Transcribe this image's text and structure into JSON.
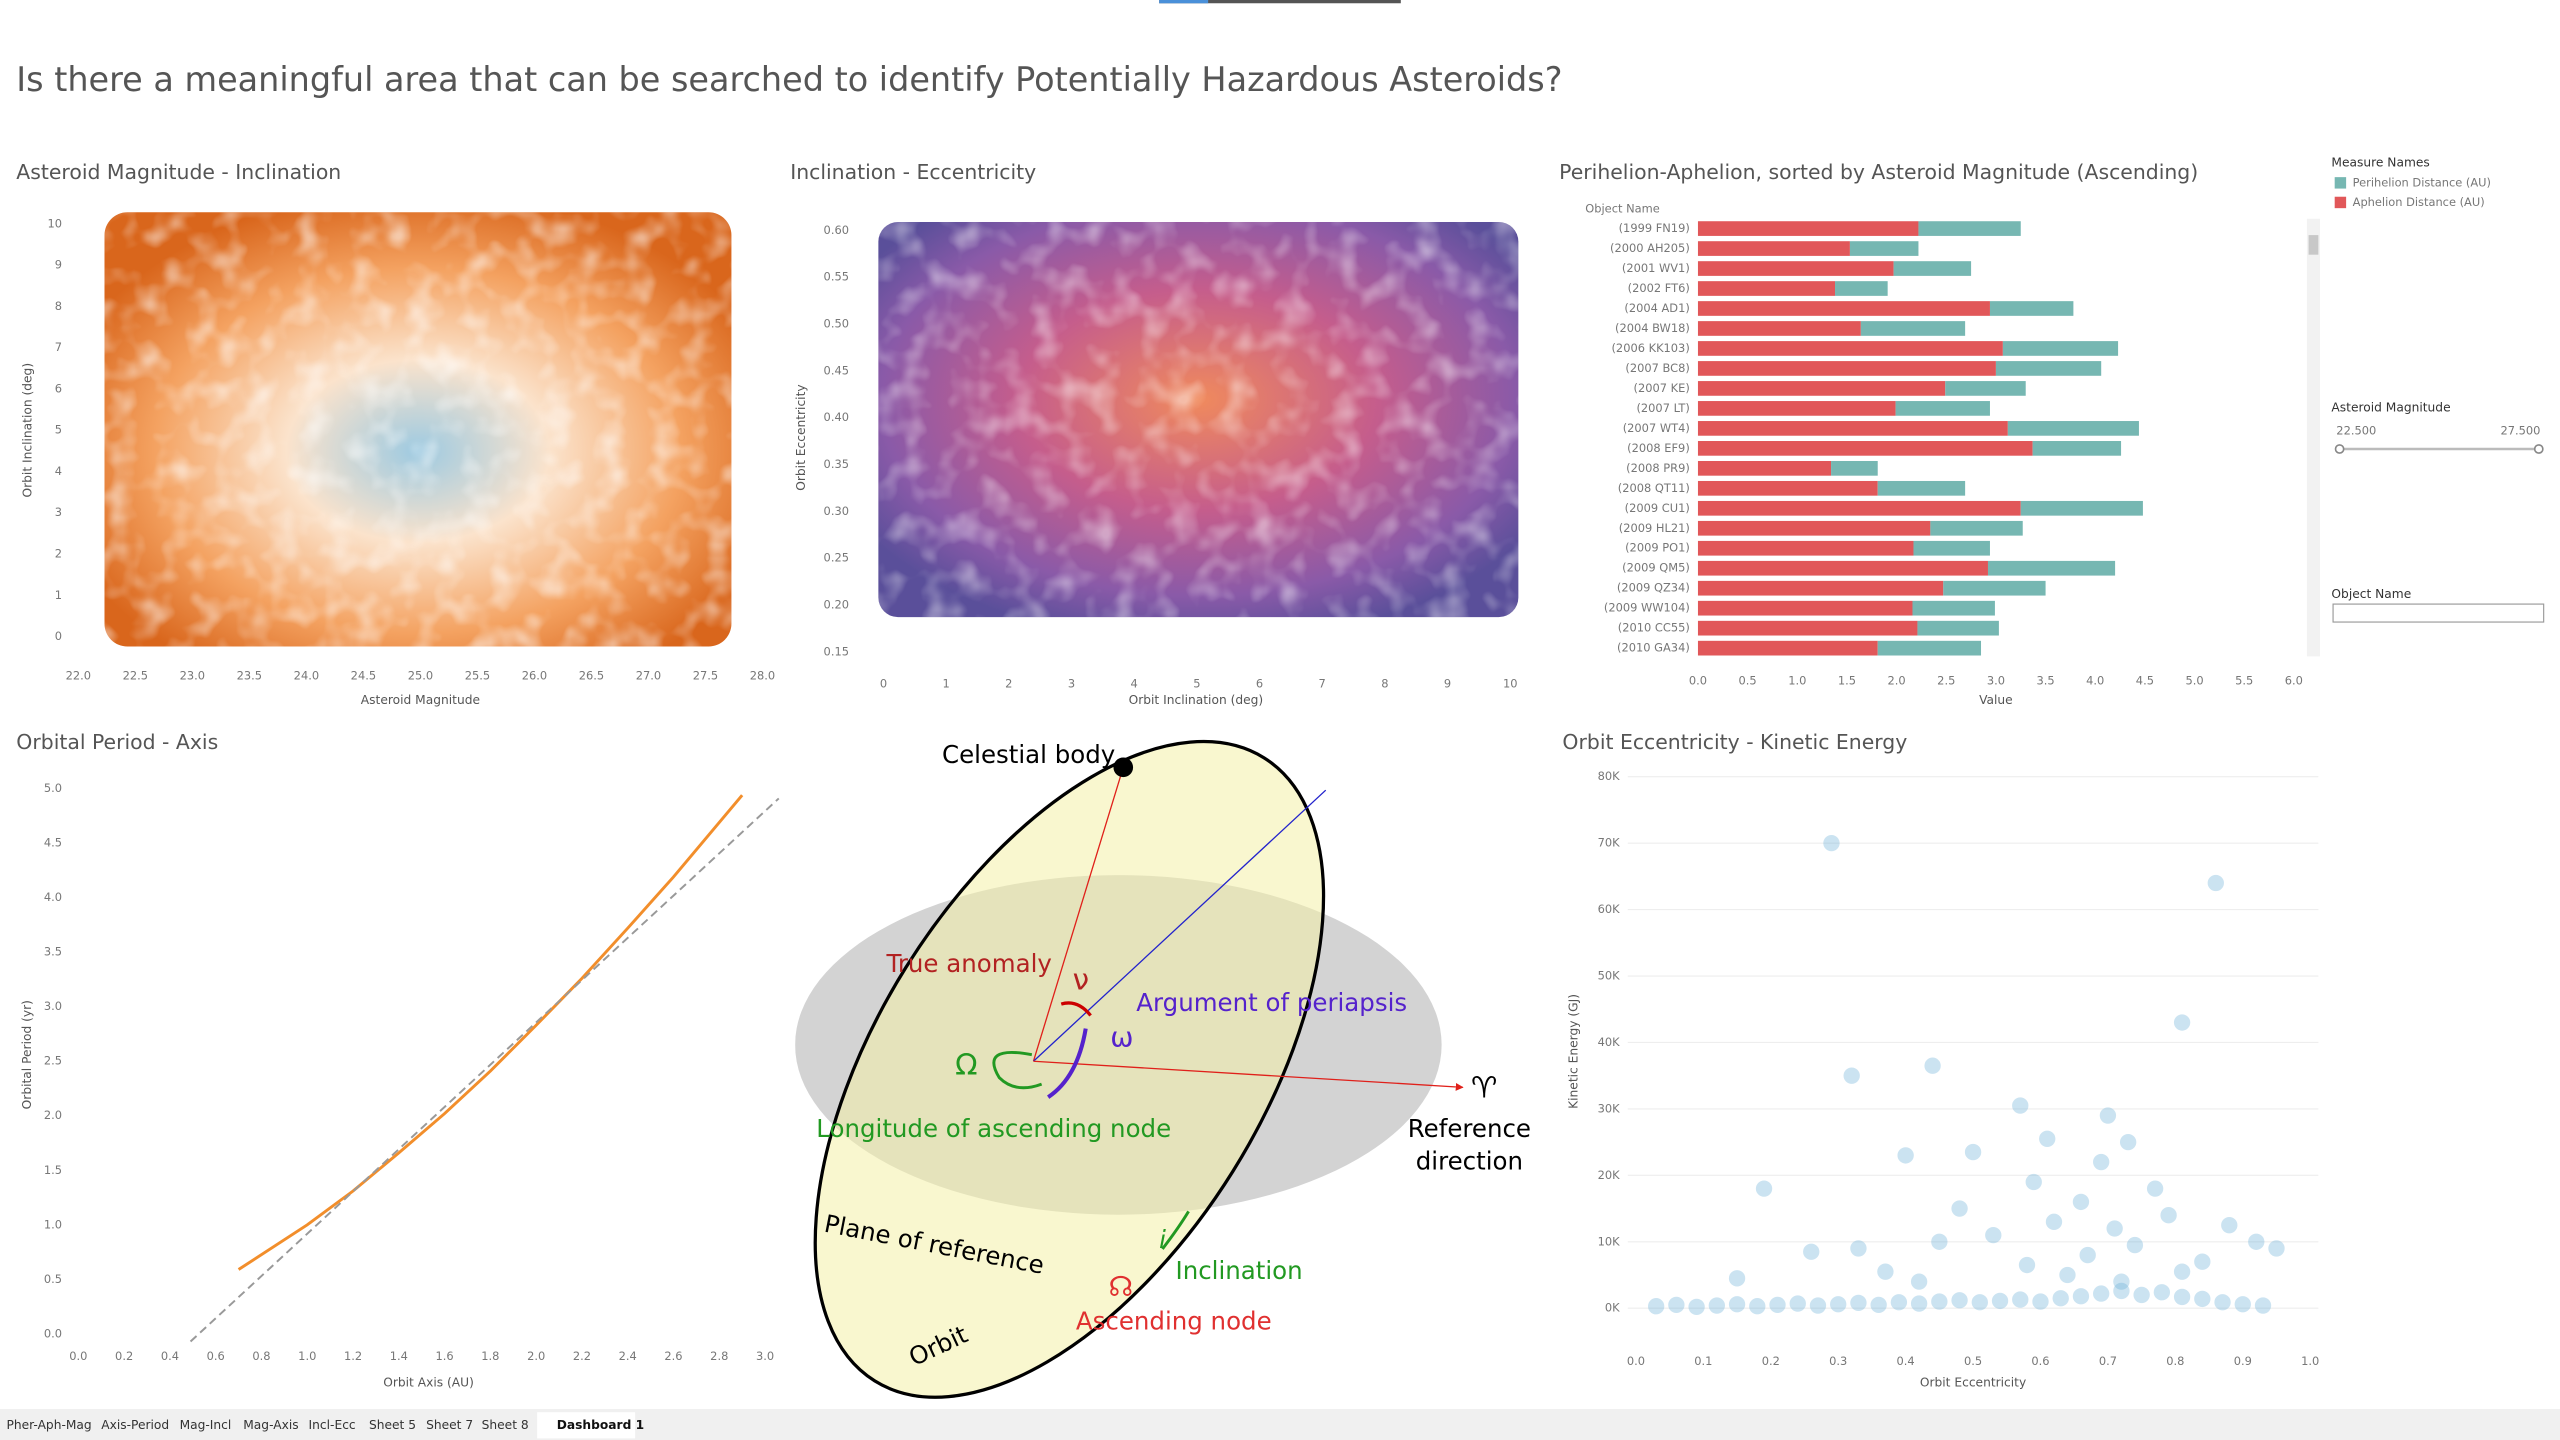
{
  "header": {
    "title": "Is there a meaningful area that can be searched to identify Potentially Hazardous Asteroids?"
  },
  "chart_data": [
    {
      "type": "density",
      "title": "Asteroid Magnitude - Inclination",
      "x_label": "Asteroid Magnitude",
      "y_label": "Orbit Inclination (deg)",
      "xlim": [
        22,
        28
      ],
      "xticks": [
        {
          "value": 22,
          "label": "22.0"
        },
        22.5,
        {
          "value": 23,
          "label": "23.0"
        },
        23.5,
        {
          "value": 24,
          "label": "24.0"
        },
        24.5,
        {
          "value": 25,
          "label": "25.0"
        },
        25.5,
        {
          "value": 26,
          "label": "26.0"
        },
        26.5,
        {
          "value": 27,
          "label": "27.0"
        },
        27.5,
        {
          "value": 28,
          "label": "28.0"
        }
      ],
      "ylim": [
        -0.4,
        10.4
      ],
      "yticks": [
        0,
        1,
        2,
        3,
        4,
        5,
        6,
        7,
        8,
        9,
        10
      ]
    },
    {
      "type": "density",
      "title": "Inclination - Eccentricity",
      "x_label": "Orbit Inclination (deg)",
      "y_label": "Orbit Eccentricity",
      "xlim": [
        -0.29,
        10.26
      ],
      "xticks": [
        0,
        1,
        2,
        3,
        4,
        5,
        6,
        7,
        8,
        9,
        10
      ],
      "ylim": [
        0.14,
        0.6175
      ],
      "yticks": [
        0.15,
        {
          "value": 0.2,
          "label": "0.20"
        },
        0.25,
        {
          "value": 0.3,
          "label": "0.30"
        },
        0.35,
        {
          "value": 0.4,
          "label": "0.40"
        },
        0.45,
        {
          "value": 0.5,
          "label": "0.50"
        },
        0.55,
        {
          "value": 0.6,
          "label": "0.60"
        }
      ]
    },
    {
      "type": "barh",
      "title": "Perihelion-Aphelion, sorted by Asteroid Magnitude (Ascending)",
      "x_label": "Value",
      "y_label": "Object Name",
      "legend_title": "Measure Names",
      "categories": [
        "(1999 FN19)",
        "(2000 AH205)",
        "(2001 WV1)",
        "(2002 FT6)",
        "(2004 AD1)",
        "(2004 BW18)",
        "(2006 KK103)",
        "(2007 BC8)",
        "(2007 KE)",
        "(2007 LT)",
        "(2007 WT4)",
        "(2008 EF9)",
        "(2008 PR9)",
        "(2008 QT11)",
        "(2009 CU1)",
        "(2009 HL21)",
        "(2009 PO1)",
        "(2009 QM5)",
        "(2009 QZ34)",
        "(2009 WW104)",
        "(2010 CC55)",
        "(2010 GA34)"
      ],
      "series": [
        {
          "name": "Perihelion Distance (AU)",
          "color": "#76b7b2",
          "values": [
            1.03,
            0.69,
            0.78,
            0.53,
            0.84,
            1.05,
            1.16,
            1.06,
            0.81,
            0.95,
            1.32,
            0.89,
            0.47,
            0.88,
            1.23,
            0.93,
            0.77,
            1.28,
            1.03,
            0.83,
            0.82,
            1.04
          ]
        },
        {
          "name": "Aphelion Distance (AU)",
          "color": "#e15759",
          "values": [
            2.22,
            1.53,
            1.97,
            1.38,
            2.94,
            1.64,
            3.07,
            3.0,
            2.49,
            1.99,
            3.12,
            3.37,
            1.34,
            1.81,
            3.25,
            2.34,
            2.17,
            2.92,
            2.47,
            2.16,
            2.21,
            1.81
          ]
        }
      ],
      "xlim": [
        0,
        6
      ],
      "xticks": [
        {
          "value": 0,
          "label": "0.0"
        },
        0.5,
        {
          "value": 1,
          "label": "1.0"
        },
        1.5,
        {
          "value": 2,
          "label": "2.0"
        },
        2.5,
        {
          "value": 3,
          "label": "3.0"
        },
        3.5,
        {
          "value": 4,
          "label": "4.0"
        },
        4.5,
        {
          "value": 5,
          "label": "5.0"
        },
        5.5,
        {
          "value": 6,
          "label": "6.0"
        }
      ]
    },
    {
      "type": "line",
      "title": "Orbital Period - Axis",
      "x_label": "Orbit Axis (AU)",
      "y_label": "Orbital Period (yr)",
      "series": [
        {
          "color": "#f28e2b",
          "dashed": false,
          "x": [
            0.7,
            1.0,
            1.2,
            1.4,
            1.6,
            1.8,
            2.0,
            2.2,
            2.4,
            2.6,
            2.8,
            2.9
          ],
          "values": [
            0.59,
            1.0,
            1.31,
            1.66,
            2.02,
            2.41,
            2.83,
            3.26,
            3.72,
            4.19,
            4.69,
            4.94
          ]
        },
        {
          "color": "#999999",
          "dashed": true,
          "x": [
            0.49,
            3.06
          ],
          "values": [
            -0.07,
            4.91
          ]
        }
      ],
      "xlim": [
        0,
        3.06
      ],
      "xticks": [
        {
          "value": 0,
          "label": "0.0"
        },
        0.2,
        0.4,
        0.6,
        0.8,
        {
          "value": 1,
          "label": "1.0"
        },
        1.2,
        1.4,
        1.6,
        1.8,
        {
          "value": 2,
          "label": "2.0"
        },
        2.2,
        2.4,
        2.6,
        2.8,
        {
          "value": 3,
          "label": "3.0"
        }
      ],
      "ylim": [
        0,
        5.12
      ],
      "yticks": [
        {
          "value": 0,
          "label": "0.0"
        },
        0.5,
        {
          "value": 1,
          "label": "1.0"
        },
        1.5,
        {
          "value": 2,
          "label": "2.0"
        },
        2.5,
        {
          "value": 3,
          "label": "3.0"
        },
        3.5,
        {
          "value": 4,
          "label": "4.0"
        },
        4.5,
        {
          "value": 5,
          "label": "5.0"
        }
      ]
    },
    {
      "type": "scatter",
      "title": "Orbit Eccentricity - Kinetic Energy",
      "x_label": "Orbit Eccentricity",
      "y_label": "Kinetic Energy (GJ)",
      "color": "#6baed6",
      "grid": true,
      "x": [
        0.29,
        0.86,
        0.81,
        0.44,
        0.32,
        0.57,
        0.7,
        0.61,
        0.73,
        0.5,
        0.4,
        0.19,
        0.59,
        0.69,
        0.66,
        0.77,
        0.88,
        0.48,
        0.62,
        0.71,
        0.79,
        0.92,
        0.26,
        0.33,
        0.45,
        0.53,
        0.67,
        0.74,
        0.84,
        0.58,
        0.95,
        0.37,
        0.15,
        0.42,
        0.64,
        0.81,
        0.72,
        0.03,
        0.06,
        0.09,
        0.12,
        0.15,
        0.18,
        0.21,
        0.24,
        0.27,
        0.3,
        0.33,
        0.36,
        0.39,
        0.42,
        0.45,
        0.48,
        0.51,
        0.54,
        0.57,
        0.6,
        0.63,
        0.66,
        0.69,
        0.72,
        0.75,
        0.78,
        0.81,
        0.84,
        0.87,
        0.9,
        0.93
      ],
      "values": [
        70000,
        64000,
        43000,
        36500,
        35000,
        30500,
        29000,
        25500,
        25000,
        23500,
        23000,
        18000,
        19000,
        22000,
        16000,
        18000,
        12500,
        15000,
        13000,
        12000,
        14000,
        10000,
        8500,
        9000,
        10000,
        11000,
        8000,
        9500,
        7000,
        6500,
        9000,
        5500,
        4500,
        4000,
        5000,
        5500,
        4000,
        300,
        500,
        200,
        400,
        600,
        300,
        500,
        700,
        400,
        600,
        800,
        500,
        900,
        700,
        1000,
        1200,
        900,
        1100,
        1300,
        1000,
        1500,
        1800,
        2200,
        2600,
        2000,
        2400,
        1700,
        1400,
        900,
        600,
        400
      ],
      "xlim": [
        0,
        1
      ],
      "xticks": [
        {
          "value": 0,
          "label": "0.0"
        },
        0.1,
        0.2,
        0.3,
        0.4,
        0.5,
        0.6,
        0.7,
        0.8,
        0.9,
        {
          "value": 1,
          "label": "1.0"
        }
      ],
      "ylim": [
        -4600,
        81900
      ],
      "yticks": [
        {
          "value": 0,
          "label": "0K"
        },
        {
          "value": 10000,
          "label": "10K"
        },
        {
          "value": 20000,
          "label": "20K"
        },
        {
          "value": 30000,
          "label": "30K"
        },
        {
          "value": 40000,
          "label": "40K"
        },
        {
          "value": 50000,
          "label": "50K"
        },
        {
          "value": 60000,
          "label": "60K"
        },
        {
          "value": 70000,
          "label": "70K"
        },
        {
          "value": 80000,
          "label": "80K"
        }
      ]
    }
  ],
  "diagram": {
    "celestial_body": "Celestial body",
    "true_anomaly": "True anomaly",
    "nu": "ν",
    "argument_of_periapsis": "Argument of periapsis",
    "omega": "ω",
    "node_longitude_symbol": "Ω",
    "longitude_of_ascending_node": "Longitude of ascending node",
    "reference_symbol": "♈",
    "reference_direction": [
      "Reference",
      "direction"
    ],
    "plane_of_reference": "Plane of reference",
    "orbit": "Orbit",
    "i": "i",
    "inclination": "Inclination",
    "node_symbol": "☊",
    "ascending_node": "Ascending node"
  },
  "controls": {
    "magnitude_filter": {
      "title": "Asteroid Magnitude",
      "min": "22.500",
      "max": "27.500"
    },
    "object_name": {
      "title": "Object Name"
    }
  },
  "tabs": [
    "Pher-Aph-Mag",
    "Axis-Period",
    "Mag-Incl",
    "Mag-Axis",
    "Incl-Ecc",
    "Sheet 5",
    "Sheet 7",
    "Sheet 8",
    "Dashboard 1"
  ]
}
